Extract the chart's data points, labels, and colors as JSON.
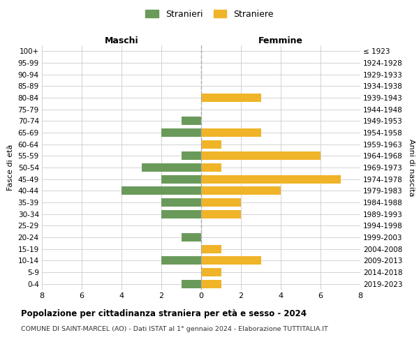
{
  "age_groups": [
    "100+",
    "95-99",
    "90-94",
    "85-89",
    "80-84",
    "75-79",
    "70-74",
    "65-69",
    "60-64",
    "55-59",
    "50-54",
    "45-49",
    "40-44",
    "35-39",
    "30-34",
    "25-29",
    "20-24",
    "15-19",
    "10-14",
    "5-9",
    "0-4"
  ],
  "birth_years": [
    "≤ 1923",
    "1924-1928",
    "1929-1933",
    "1934-1938",
    "1939-1943",
    "1944-1948",
    "1949-1953",
    "1954-1958",
    "1959-1963",
    "1964-1968",
    "1969-1973",
    "1974-1978",
    "1979-1983",
    "1984-1988",
    "1989-1993",
    "1994-1998",
    "1999-2003",
    "2004-2008",
    "2009-2013",
    "2014-2018",
    "2019-2023"
  ],
  "maschi": [
    0,
    0,
    0,
    0,
    0,
    0,
    1,
    2,
    0,
    1,
    3,
    2,
    4,
    2,
    2,
    0,
    1,
    0,
    2,
    0,
    1
  ],
  "femmine": [
    0,
    0,
    0,
    0,
    3,
    0,
    0,
    3,
    1,
    6,
    1,
    7,
    4,
    2,
    2,
    0,
    0,
    1,
    3,
    1,
    1
  ],
  "maschi_color": "#6a9a5a",
  "femmine_color": "#f0b429",
  "background_color": "#ffffff",
  "grid_color": "#cccccc",
  "title": "Popolazione per cittadinanza straniera per età e sesso - 2024",
  "subtitle": "COMUNE DI SAINT-MARCEL (AO) - Dati ISTAT al 1° gennaio 2024 - Elaborazione TUTTITALIA.IT",
  "left_label": "Maschi",
  "right_label": "Femmine",
  "y_left_label": "Fasce di età",
  "y_right_label": "Anni di nascita",
  "legend_maschi": "Stranieri",
  "legend_femmine": "Straniere",
  "xlim": 8,
  "bar_height": 0.72
}
